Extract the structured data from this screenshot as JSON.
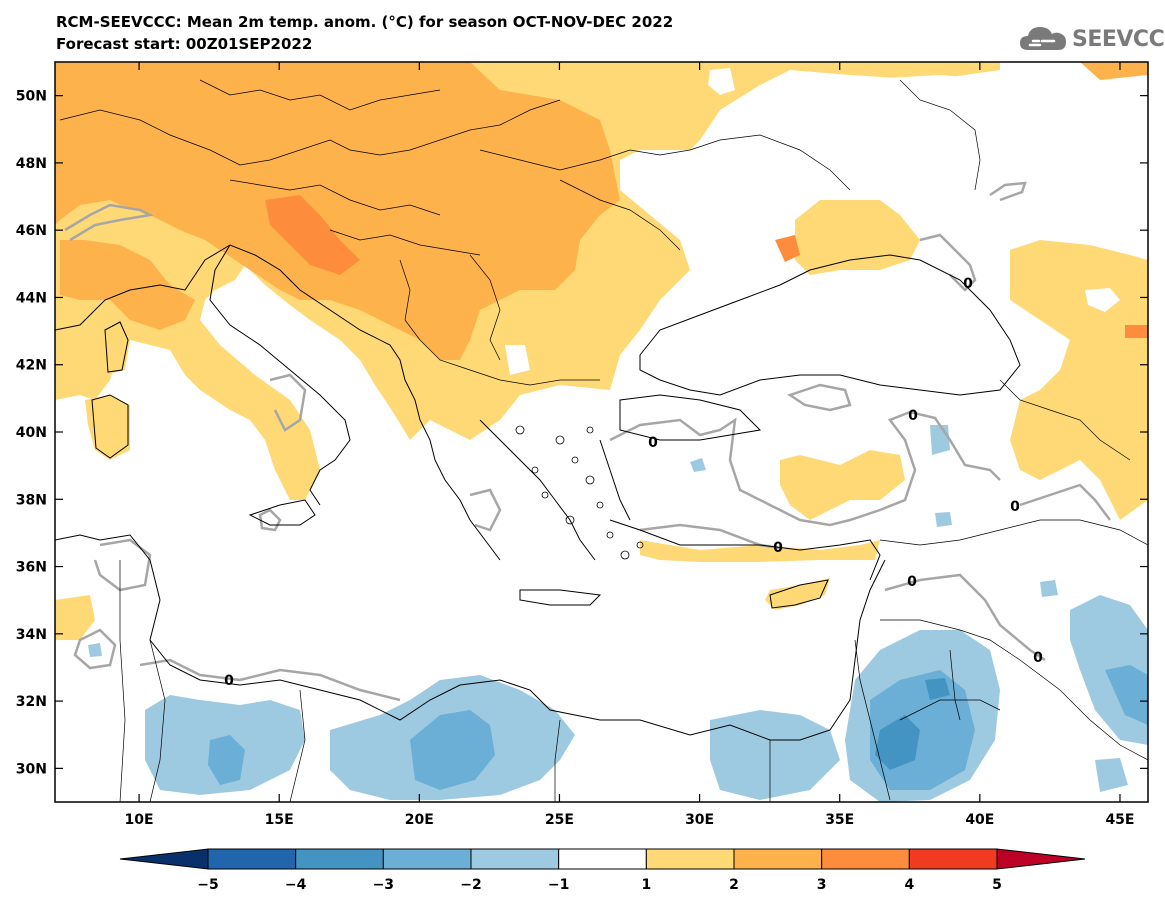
{
  "header": {
    "title": "RCM-SEEVCCC: Mean 2m temp. anom. (°C) for season OCT-NOV-DEC 2022",
    "subtitle": "Forecast start: 00Z01SEP2022"
  },
  "logo": {
    "text": "SEEVCCC",
    "icon": "cloud-icon",
    "color": "#7a7a7a"
  },
  "map": {
    "lon_range": [
      7,
      46
    ],
    "lat_range": [
      29,
      51
    ],
    "lat_ticks": [
      {
        "value": 50,
        "label": "50N"
      },
      {
        "value": 48,
        "label": "48N"
      },
      {
        "value": 46,
        "label": "46N"
      },
      {
        "value": 44,
        "label": "44N"
      },
      {
        "value": 42,
        "label": "42N"
      },
      {
        "value": 40,
        "label": "40N"
      },
      {
        "value": 38,
        "label": "38N"
      },
      {
        "value": 36,
        "label": "36N"
      },
      {
        "value": 34,
        "label": "34N"
      },
      {
        "value": 32,
        "label": "32N"
      },
      {
        "value": 30,
        "label": "30N"
      }
    ],
    "lon_ticks": [
      {
        "value": 10,
        "label": "10E"
      },
      {
        "value": 15,
        "label": "15E"
      },
      {
        "value": 20,
        "label": "20E"
      },
      {
        "value": 25,
        "label": "25E"
      },
      {
        "value": 30,
        "label": "30E"
      },
      {
        "value": 35,
        "label": "35E"
      },
      {
        "value": 40,
        "label": "40E"
      },
      {
        "value": 45,
        "label": "45E"
      }
    ],
    "contour_label": "0",
    "contour_color": "#a6a6a6"
  },
  "colorbar": {
    "boundaries": [
      "−5",
      "−4",
      "−3",
      "−2",
      "−1",
      "1",
      "2",
      "3",
      "4",
      "5"
    ],
    "colors": [
      "#08306b",
      "#2166ac",
      "#4393c3",
      "#6baed6",
      "#9ecae1",
      "#ffffff",
      "#fed976",
      "#feb24c",
      "#fd8d3c",
      "#f03b20",
      "#bd0026"
    ]
  },
  "palette": {
    "anom_1_2": "#fed976",
    "anom_2_3": "#feb24c",
    "anom_3_4": "#fd8d3c",
    "anom_m1_m2": "#9ecae1",
    "anom_m2_m3": "#6baed6",
    "anom_m3_m4": "#4393c3"
  }
}
